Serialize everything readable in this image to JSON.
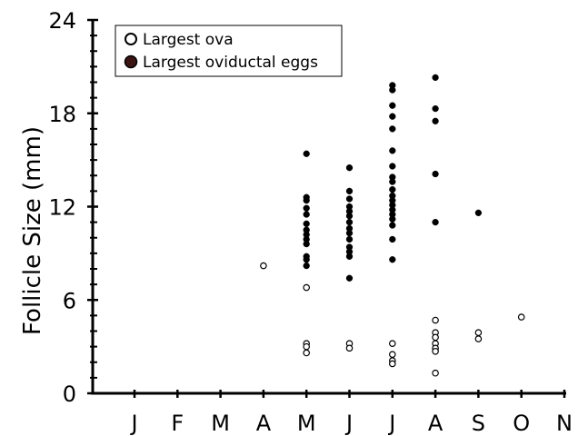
{
  "chart_data": {
    "type": "scatter",
    "title": "",
    "xlabel": "",
    "ylabel": "Follicle Size (mm)",
    "ylim": [
      0,
      24
    ],
    "yticks": [
      "0",
      "6",
      "12",
      "18",
      "24"
    ],
    "categories": [
      "J",
      "F",
      "M",
      "A",
      "M",
      "J",
      "J",
      "A",
      "S",
      "O",
      "N"
    ],
    "legend_position": "top-left",
    "grid": false,
    "series": [
      {
        "name": "Largest ova",
        "marker": "open-circle",
        "color": "#000000",
        "points": [
          {
            "x": "A",
            "y": 8.2
          },
          {
            "x": "M",
            "y": 6.8
          },
          {
            "x": "M",
            "y": 3.2
          },
          {
            "x": "M",
            "y": 3.0
          },
          {
            "x": "M",
            "y": 2.6
          },
          {
            "x": "J",
            "y": 3.2
          },
          {
            "x": "J",
            "y": 2.9
          },
          {
            "x": "J",
            "y": 3.2
          },
          {
            "x": "J",
            "y": 2.5
          },
          {
            "x": "J",
            "y": 2.1
          },
          {
            "x": "J",
            "y": 1.9
          },
          {
            "x": "A",
            "y": 4.7
          },
          {
            "x": "A",
            "y": 3.9
          },
          {
            "x": "A",
            "y": 3.6
          },
          {
            "x": "A",
            "y": 3.2
          },
          {
            "x": "A",
            "y": 2.9
          },
          {
            "x": "A",
            "y": 2.7
          },
          {
            "x": "A",
            "y": 1.3
          },
          {
            "x": "S",
            "y": 3.9
          },
          {
            "x": "S",
            "y": 3.5
          },
          {
            "x": "O",
            "y": 4.9
          }
        ]
      },
      {
        "name": "Largest oviductal eggs",
        "marker": "filled-circle",
        "color": "#000000",
        "points": [
          {
            "x": "M",
            "y": 15.4
          },
          {
            "x": "M",
            "y": 12.6
          },
          {
            "x": "M",
            "y": 12.4
          },
          {
            "x": "M",
            "y": 11.9
          },
          {
            "x": "M",
            "y": 11.5
          },
          {
            "x": "M",
            "y": 10.9
          },
          {
            "x": "M",
            "y": 10.5
          },
          {
            "x": "M",
            "y": 10.2
          },
          {
            "x": "M",
            "y": 9.9
          },
          {
            "x": "M",
            "y": 9.6
          },
          {
            "x": "M",
            "y": 8.8
          },
          {
            "x": "M",
            "y": 8.6
          },
          {
            "x": "M",
            "y": 8.2
          },
          {
            "x": "J",
            "y": 14.5
          },
          {
            "x": "J",
            "y": 13.0
          },
          {
            "x": "J",
            "y": 12.5
          },
          {
            "x": "J",
            "y": 12.0
          },
          {
            "x": "J",
            "y": 11.7
          },
          {
            "x": "J",
            "y": 11.4
          },
          {
            "x": "J",
            "y": 11.0
          },
          {
            "x": "J",
            "y": 10.6
          },
          {
            "x": "J",
            "y": 10.3
          },
          {
            "x": "J",
            "y": 9.9
          },
          {
            "x": "J",
            "y": 9.4
          },
          {
            "x": "J",
            "y": 9.1
          },
          {
            "x": "J",
            "y": 8.8
          },
          {
            "x": "J",
            "y": 7.4
          },
          {
            "x": "J",
            "y": 19.8
          },
          {
            "x": "J",
            "y": 19.5
          },
          {
            "x": "J",
            "y": 18.5
          },
          {
            "x": "J",
            "y": 17.8
          },
          {
            "x": "J",
            "y": 17.0
          },
          {
            "x": "J",
            "y": 15.6
          },
          {
            "x": "J",
            "y": 14.6
          },
          {
            "x": "J",
            "y": 13.9
          },
          {
            "x": "J",
            "y": 13.6
          },
          {
            "x": "J",
            "y": 13.1
          },
          {
            "x": "J",
            "y": 12.7
          },
          {
            "x": "J",
            "y": 12.4
          },
          {
            "x": "J",
            "y": 12.1
          },
          {
            "x": "J",
            "y": 11.8
          },
          {
            "x": "J",
            "y": 11.5
          },
          {
            "x": "J",
            "y": 11.2
          },
          {
            "x": "J",
            "y": 10.8
          },
          {
            "x": "J",
            "y": 9.9
          },
          {
            "x": "J",
            "y": 8.6
          },
          {
            "x": "A",
            "y": 20.3
          },
          {
            "x": "A",
            "y": 18.3
          },
          {
            "x": "A",
            "y": 17.5
          },
          {
            "x": "A",
            "y": 14.1
          },
          {
            "x": "A",
            "y": 11.0
          },
          {
            "x": "S",
            "y": 11.6
          }
        ]
      }
    ]
  }
}
